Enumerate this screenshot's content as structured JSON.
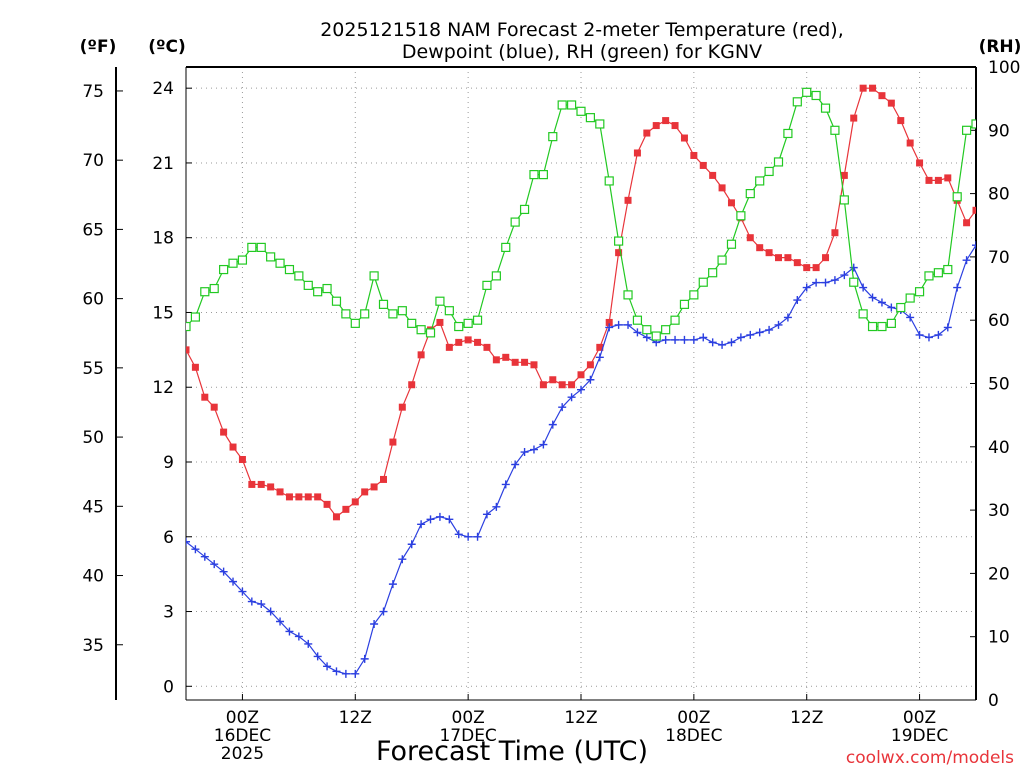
{
  "chart_data": {
    "type": "line",
    "title_lines": [
      "2025121518 NAM Forecast 2-meter Temperature (red),",
      "Dewpoint (blue), RH (green) for KGNV"
    ],
    "xlabel": "Forecast Time (UTC)",
    "credit": "coolwx.com/models",
    "axes": {
      "fahrenheit": {
        "label": "(ºF)",
        "ticks": [
          35,
          40,
          45,
          50,
          55,
          60,
          65,
          70,
          75
        ]
      },
      "celsius": {
        "label": "(ºC)",
        "ticks": [
          0,
          3,
          6,
          9,
          12,
          15,
          18,
          21,
          24
        ],
        "ylim": [
          -0.55,
          24.85
        ]
      },
      "rh": {
        "label": "(RH)",
        "ticks": [
          0,
          10,
          20,
          30,
          40,
          50,
          60,
          70,
          80,
          90,
          100
        ],
        "ylim": [
          0,
          100
        ]
      }
    },
    "x_unit": "hour",
    "xlim": [
      18,
      102
    ],
    "x_ticks": [
      {
        "x": 24,
        "lines": [
          "00Z",
          "16DEC",
          "2025"
        ]
      },
      {
        "x": 36,
        "lines": [
          "12Z"
        ]
      },
      {
        "x": 48,
        "lines": [
          "00Z",
          "17DEC"
        ]
      },
      {
        "x": 60,
        "lines": [
          "12Z"
        ]
      },
      {
        "x": 72,
        "lines": [
          "00Z",
          "18DEC"
        ]
      },
      {
        "x": 84,
        "lines": [
          "12Z"
        ]
      },
      {
        "x": 96,
        "lines": [
          "00Z",
          "19DEC"
        ]
      }
    ],
    "grid": true,
    "series": [
      {
        "name": "Temperature",
        "unit": "C",
        "color": "#e8343a",
        "marker": "filled-square",
        "points": [
          [
            18,
            13.5
          ],
          [
            19,
            12.8
          ],
          [
            20,
            11.6
          ],
          [
            21,
            11.2
          ],
          [
            22,
            10.2
          ],
          [
            23,
            9.6
          ],
          [
            24,
            9.1
          ],
          [
            25,
            8.1
          ],
          [
            26,
            8.1
          ],
          [
            27,
            8.0
          ],
          [
            28,
            7.8
          ],
          [
            29,
            7.6
          ],
          [
            30,
            7.6
          ],
          [
            31,
            7.6
          ],
          [
            32,
            7.6
          ],
          [
            33,
            7.3
          ],
          [
            34,
            6.8
          ],
          [
            35,
            7.1
          ],
          [
            36,
            7.4
          ],
          [
            37,
            7.8
          ],
          [
            38,
            8.0
          ],
          [
            39,
            8.3
          ],
          [
            40,
            9.8
          ],
          [
            41,
            11.2
          ],
          [
            42,
            12.1
          ],
          [
            43,
            13.3
          ],
          [
            44,
            14.3
          ],
          [
            45,
            14.6
          ],
          [
            46,
            13.6
          ],
          [
            47,
            13.8
          ],
          [
            48,
            13.9
          ],
          [
            49,
            13.8
          ],
          [
            50,
            13.6
          ],
          [
            51,
            13.1
          ],
          [
            52,
            13.2
          ],
          [
            53,
            13.0
          ],
          [
            54,
            13.0
          ],
          [
            55,
            12.9
          ],
          [
            56,
            12.1
          ],
          [
            57,
            12.3
          ],
          [
            58,
            12.1
          ],
          [
            59,
            12.1
          ],
          [
            60,
            12.5
          ],
          [
            61,
            12.9
          ],
          [
            62,
            13.6
          ],
          [
            63,
            14.6
          ],
          [
            64,
            17.4
          ],
          [
            65,
            19.5
          ],
          [
            66,
            21.4
          ],
          [
            67,
            22.2
          ],
          [
            68,
            22.5
          ],
          [
            69,
            22.7
          ],
          [
            70,
            22.5
          ],
          [
            71,
            22.0
          ],
          [
            72,
            21.3
          ],
          [
            73,
            20.9
          ],
          [
            74,
            20.5
          ],
          [
            75,
            20.0
          ],
          [
            76,
            19.4
          ],
          [
            77,
            18.8
          ],
          [
            78,
            18.0
          ],
          [
            79,
            17.6
          ],
          [
            80,
            17.4
          ],
          [
            81,
            17.2
          ],
          [
            82,
            17.2
          ],
          [
            83,
            17.0
          ],
          [
            84,
            16.8
          ],
          [
            85,
            16.8
          ],
          [
            86,
            17.2
          ],
          [
            87,
            18.2
          ],
          [
            88,
            20.5
          ],
          [
            89,
            22.8
          ],
          [
            90,
            24.0
          ],
          [
            91,
            24.0
          ],
          [
            92,
            23.7
          ],
          [
            93,
            23.4
          ],
          [
            94,
            22.7
          ],
          [
            95,
            21.8
          ],
          [
            96,
            21.0
          ],
          [
            97,
            20.3
          ],
          [
            98,
            20.3
          ],
          [
            99,
            20.4
          ],
          [
            100,
            19.5
          ],
          [
            101,
            18.6
          ],
          [
            102,
            19.1
          ]
        ]
      },
      {
        "name": "Dewpoint",
        "unit": "C",
        "color": "#2b3fe0",
        "marker": "plus",
        "points": [
          [
            18,
            5.8
          ],
          [
            19,
            5.5
          ],
          [
            20,
            5.2
          ],
          [
            21,
            4.9
          ],
          [
            22,
            4.6
          ],
          [
            23,
            4.2
          ],
          [
            24,
            3.8
          ],
          [
            25,
            3.4
          ],
          [
            26,
            3.3
          ],
          [
            27,
            3.0
          ],
          [
            28,
            2.6
          ],
          [
            29,
            2.2
          ],
          [
            30,
            2.0
          ],
          [
            31,
            1.7
          ],
          [
            32,
            1.2
          ],
          [
            33,
            0.8
          ],
          [
            34,
            0.6
          ],
          [
            35,
            0.5
          ],
          [
            36,
            0.5
          ],
          [
            37,
            1.1
          ],
          [
            38,
            2.5
          ],
          [
            39,
            3.0
          ],
          [
            40,
            4.1
          ],
          [
            41,
            5.1
          ],
          [
            42,
            5.7
          ],
          [
            43,
            6.5
          ],
          [
            44,
            6.7
          ],
          [
            45,
            6.8
          ],
          [
            46,
            6.7
          ],
          [
            47,
            6.1
          ],
          [
            48,
            6.0
          ],
          [
            49,
            6.0
          ],
          [
            50,
            6.9
          ],
          [
            51,
            7.2
          ],
          [
            52,
            8.1
          ],
          [
            53,
            8.9
          ],
          [
            54,
            9.4
          ],
          [
            55,
            9.5
          ],
          [
            56,
            9.7
          ],
          [
            57,
            10.5
          ],
          [
            58,
            11.2
          ],
          [
            59,
            11.6
          ],
          [
            60,
            11.9
          ],
          [
            61,
            12.3
          ],
          [
            62,
            13.2
          ],
          [
            63,
            14.4
          ],
          [
            64,
            14.5
          ],
          [
            65,
            14.5
          ],
          [
            66,
            14.2
          ],
          [
            67,
            14.0
          ],
          [
            68,
            13.8
          ],
          [
            69,
            13.9
          ],
          [
            70,
            13.9
          ],
          [
            71,
            13.9
          ],
          [
            72,
            13.9
          ],
          [
            73,
            14.0
          ],
          [
            74,
            13.8
          ],
          [
            75,
            13.7
          ],
          [
            76,
            13.8
          ],
          [
            77,
            14.0
          ],
          [
            78,
            14.1
          ],
          [
            79,
            14.2
          ],
          [
            80,
            14.3
          ],
          [
            81,
            14.5
          ],
          [
            82,
            14.8
          ],
          [
            83,
            15.5
          ],
          [
            84,
            16.0
          ],
          [
            85,
            16.2
          ],
          [
            86,
            16.2
          ],
          [
            87,
            16.3
          ],
          [
            88,
            16.5
          ],
          [
            89,
            16.8
          ],
          [
            90,
            16.0
          ],
          [
            91,
            15.6
          ],
          [
            92,
            15.4
          ],
          [
            93,
            15.2
          ],
          [
            94,
            15.1
          ],
          [
            95,
            14.8
          ],
          [
            96,
            14.1
          ],
          [
            97,
            14.0
          ],
          [
            98,
            14.1
          ],
          [
            99,
            14.4
          ],
          [
            100,
            16.0
          ],
          [
            101,
            17.1
          ],
          [
            102,
            17.7
          ]
        ]
      },
      {
        "name": "RH",
        "unit": "%",
        "color": "#22c922",
        "marker": "open-square",
        "points": [
          [
            18,
            59
          ],
          [
            19,
            60.5
          ],
          [
            20,
            64.5
          ],
          [
            21,
            65
          ],
          [
            22,
            68
          ],
          [
            23,
            69
          ],
          [
            24,
            69.5
          ],
          [
            25,
            71.5
          ],
          [
            26,
            71.5
          ],
          [
            27,
            70
          ],
          [
            28,
            69
          ],
          [
            29,
            68
          ],
          [
            30,
            67
          ],
          [
            31,
            65.5
          ],
          [
            32,
            64.5
          ],
          [
            33,
            65
          ],
          [
            34,
            63
          ],
          [
            35,
            61
          ],
          [
            36,
            59.5
          ],
          [
            37,
            61
          ],
          [
            38,
            67
          ],
          [
            39,
            62.5
          ],
          [
            40,
            61
          ],
          [
            41,
            61.5
          ],
          [
            42,
            59.5
          ],
          [
            43,
            58.5
          ],
          [
            44,
            58
          ],
          [
            45,
            63
          ],
          [
            46,
            61.5
          ],
          [
            47,
            59
          ],
          [
            48,
            59.5
          ],
          [
            49,
            60
          ],
          [
            50,
            65.5
          ],
          [
            51,
            67
          ],
          [
            52,
            71.5
          ],
          [
            53,
            75.5
          ],
          [
            54,
            77.5
          ],
          [
            55,
            83
          ],
          [
            56,
            83
          ],
          [
            57,
            89
          ],
          [
            58,
            94
          ],
          [
            59,
            94
          ],
          [
            60,
            93
          ],
          [
            61,
            92
          ],
          [
            62,
            91
          ],
          [
            63,
            82
          ],
          [
            64,
            72.5
          ],
          [
            65,
            64
          ],
          [
            66,
            60
          ],
          [
            67,
            58.5
          ],
          [
            68,
            57.5
          ],
          [
            69,
            58.5
          ],
          [
            70,
            60
          ],
          [
            71,
            62.5
          ],
          [
            72,
            64
          ],
          [
            73,
            66
          ],
          [
            74,
            67.5
          ],
          [
            75,
            69.5
          ],
          [
            76,
            72
          ],
          [
            77,
            76.5
          ],
          [
            78,
            80
          ],
          [
            79,
            82
          ],
          [
            80,
            83.5
          ],
          [
            81,
            85
          ],
          [
            82,
            89.5
          ],
          [
            83,
            94.5
          ],
          [
            84,
            96
          ],
          [
            85,
            95.5
          ],
          [
            86,
            93.5
          ],
          [
            87,
            90
          ],
          [
            88,
            79
          ],
          [
            89,
            66
          ],
          [
            90,
            61
          ],
          [
            91,
            59
          ],
          [
            92,
            59
          ],
          [
            93,
            59.5
          ],
          [
            94,
            62
          ],
          [
            95,
            63.5
          ],
          [
            96,
            64.5
          ],
          [
            97,
            67
          ],
          [
            98,
            67.5
          ],
          [
            99,
            68
          ],
          [
            100,
            79.5
          ],
          [
            101,
            90
          ],
          [
            102,
            91
          ]
        ]
      }
    ]
  }
}
